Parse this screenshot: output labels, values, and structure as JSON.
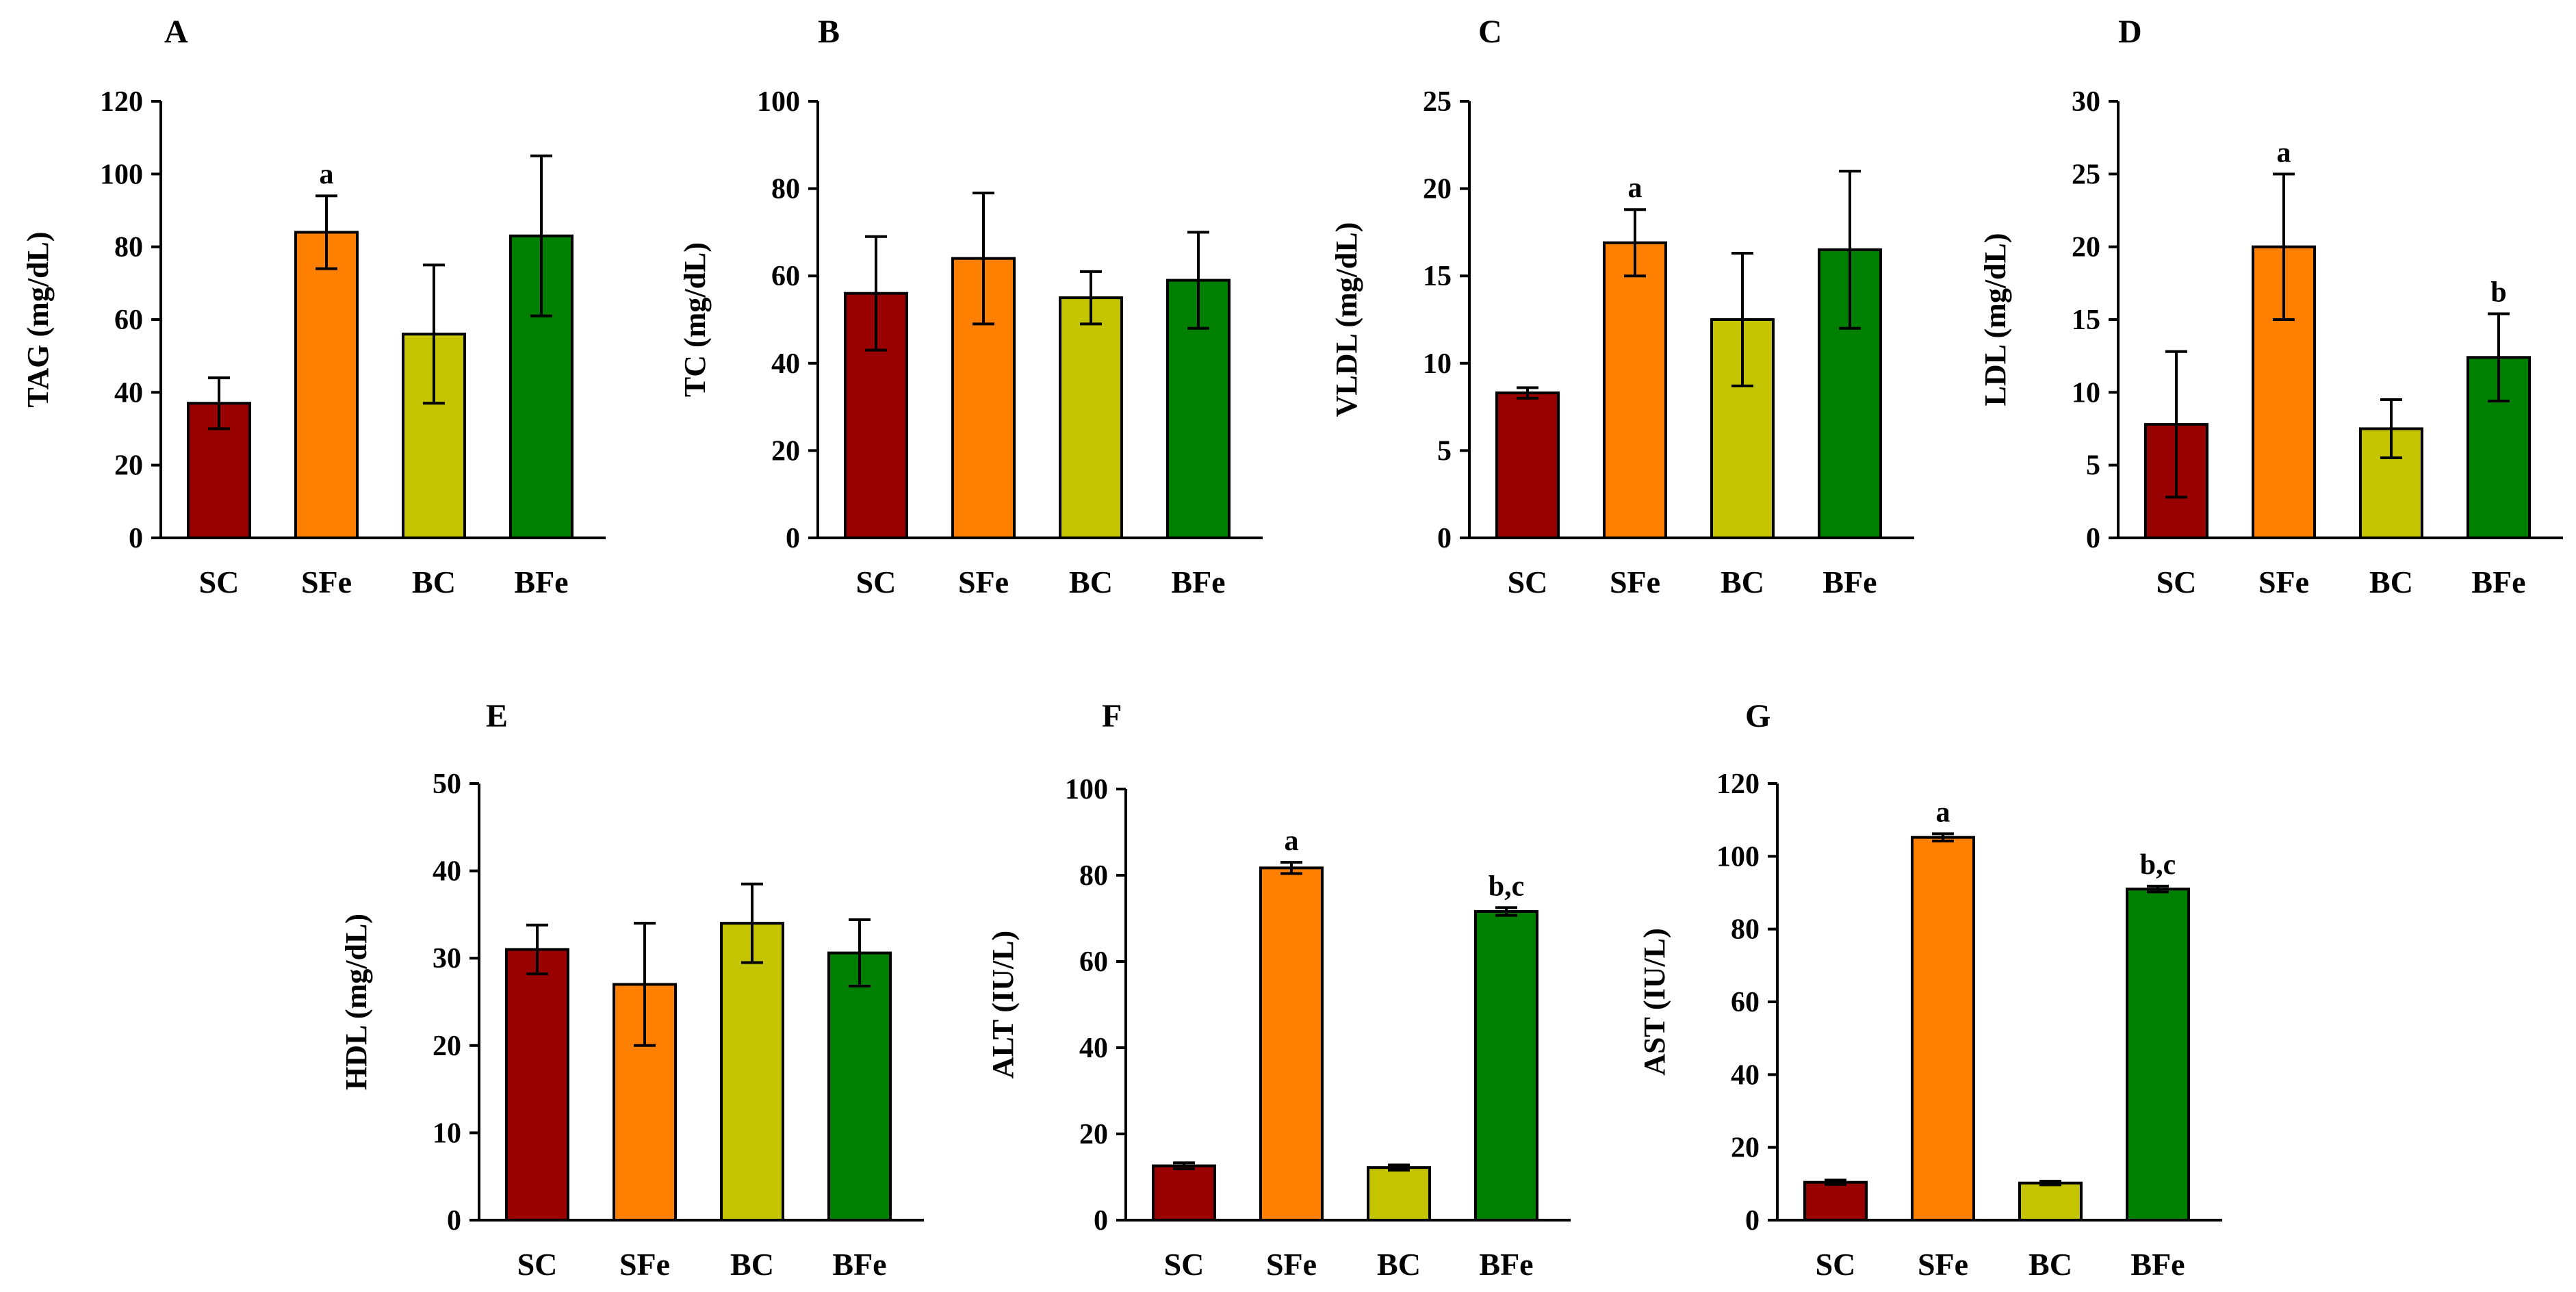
{
  "colors": {
    "SC": "#990000",
    "SFe": "#ff8000",
    "BC": "#c4c400",
    "BFe": "#008000",
    "axis": "#000000"
  },
  "chart_data": [
    {
      "panel": "A",
      "type": "bar",
      "ylabel": "TAG (mg/dL)",
      "categories": [
        "SC",
        "SFe",
        "BC",
        "BFe"
      ],
      "values": [
        37,
        84,
        56,
        83
      ],
      "errors": [
        7,
        10,
        19,
        22
      ],
      "ylim": [
        0,
        120
      ],
      "yticks": [
        0,
        20,
        40,
        60,
        80,
        100,
        120
      ],
      "annotations": [
        "",
        "a",
        "",
        ""
      ]
    },
    {
      "panel": "B",
      "type": "bar",
      "ylabel": "TC (mg/dL)",
      "categories": [
        "SC",
        "SFe",
        "BC",
        "BFe"
      ],
      "values": [
        56,
        64,
        55,
        59
      ],
      "errors": [
        13,
        15,
        6,
        11
      ],
      "ylim": [
        0,
        100
      ],
      "yticks": [
        0,
        20,
        40,
        60,
        80,
        100
      ],
      "annotations": [
        "",
        "",
        "",
        ""
      ]
    },
    {
      "panel": "C",
      "type": "bar",
      "ylabel": "VLDL (mg/dL)",
      "categories": [
        "SC",
        "SFe",
        "BC",
        "BFe"
      ],
      "values": [
        8.3,
        16.9,
        12.5,
        16.5
      ],
      "errors": [
        0.3,
        1.9,
        3.8,
        4.5
      ],
      "ylim": [
        0,
        25
      ],
      "yticks": [
        0,
        5,
        10,
        15,
        20,
        25
      ],
      "annotations": [
        "",
        "a",
        "",
        ""
      ]
    },
    {
      "panel": "D",
      "type": "bar",
      "ylabel": "LDL (mg/dL)",
      "categories": [
        "SC",
        "SFe",
        "BC",
        "BFe"
      ],
      "values": [
        7.8,
        20,
        7.5,
        12.4
      ],
      "errors": [
        5,
        5,
        2,
        3
      ],
      "ylim": [
        0,
        30
      ],
      "yticks": [
        0,
        5,
        10,
        15,
        20,
        25,
        30
      ],
      "annotations": [
        "",
        "a",
        "",
        "b"
      ]
    },
    {
      "panel": "E",
      "type": "bar",
      "ylabel": "HDL (mg/dL)",
      "categories": [
        "SC",
        "SFe",
        "BC",
        "BFe"
      ],
      "values": [
        31,
        27,
        34,
        30.6
      ],
      "errors": [
        2.8,
        7,
        4.5,
        3.8
      ],
      "ylim": [
        0,
        50
      ],
      "yticks": [
        0,
        10,
        20,
        30,
        40,
        50
      ],
      "annotations": [
        "",
        "",
        "",
        ""
      ]
    },
    {
      "panel": "F",
      "type": "bar",
      "ylabel": "ALT (IU/L)",
      "categories": [
        "SC",
        "SFe",
        "BC",
        "BFe"
      ],
      "values": [
        12.6,
        81.7,
        12.2,
        71.6
      ],
      "errors": [
        0.7,
        1.3,
        0.6,
        0.9
      ],
      "ylim": [
        0,
        100
      ],
      "yticks": [
        0,
        20,
        40,
        60,
        80,
        100
      ],
      "annotations": [
        "",
        "a",
        "",
        "b,c"
      ]
    },
    {
      "panel": "G",
      "type": "bar",
      "ylabel": "AST (IU/L)",
      "categories": [
        "SC",
        "SFe",
        "BC",
        "BFe"
      ],
      "values": [
        10.4,
        105.2,
        10.2,
        91
      ],
      "errors": [
        0.6,
        1,
        0.5,
        0.8
      ],
      "ylim": [
        0,
        120
      ],
      "yticks": [
        0,
        20,
        40,
        60,
        80,
        100,
        120
      ],
      "annotations": [
        "",
        "a",
        "",
        "b,c"
      ]
    }
  ]
}
